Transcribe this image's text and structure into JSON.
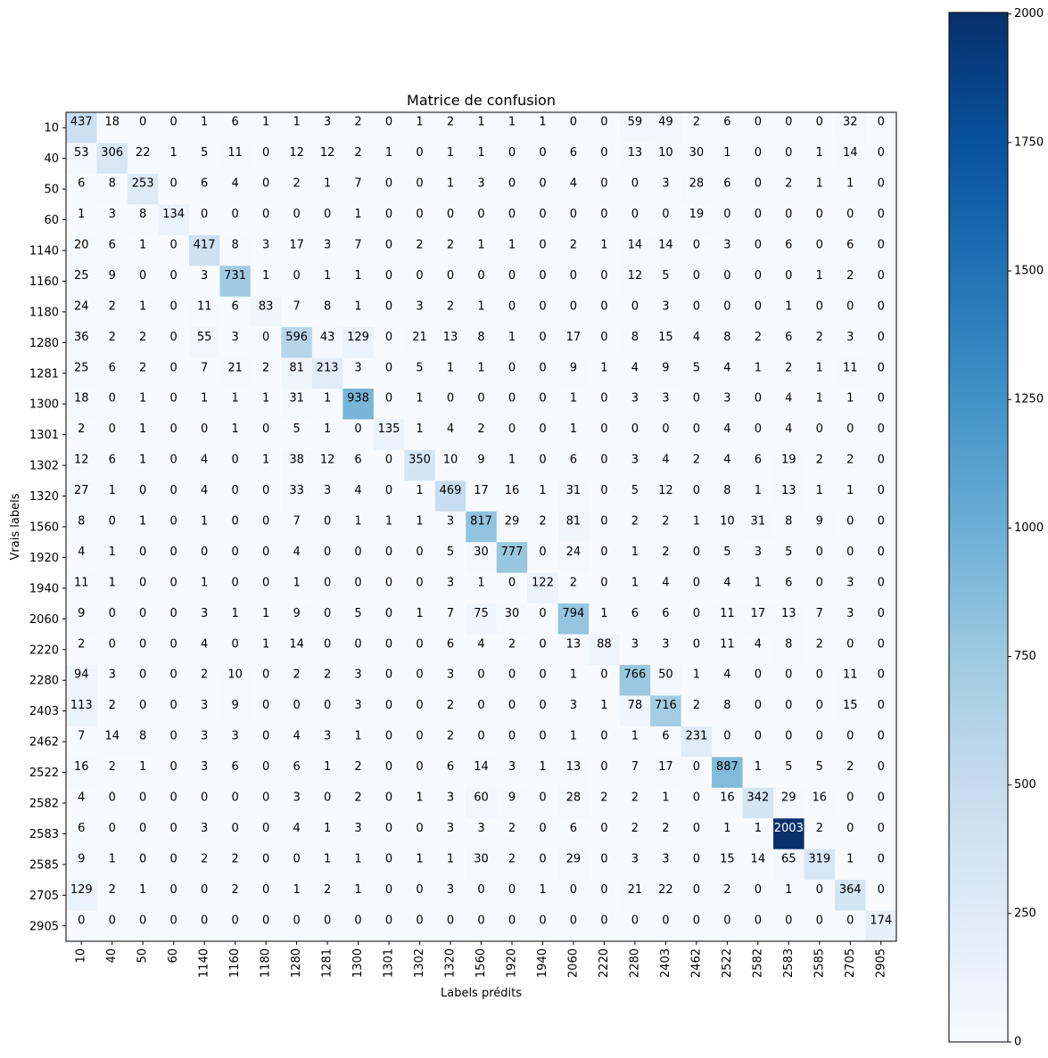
{
  "chart_data": {
    "type": "heatmap",
    "title": "Matrice de confusion",
    "xlabel": "Labels prédits",
    "ylabel": "Vrais labels",
    "categories": [
      "10",
      "40",
      "50",
      "60",
      "1140",
      "1160",
      "1180",
      "1280",
      "1281",
      "1300",
      "1301",
      "1302",
      "1320",
      "1560",
      "1920",
      "1940",
      "2060",
      "2220",
      "2280",
      "2403",
      "2462",
      "2522",
      "2582",
      "2583",
      "2585",
      "2705",
      "2905"
    ],
    "matrix": [
      [
        437,
        18,
        0,
        0,
        1,
        6,
        1,
        1,
        3,
        2,
        0,
        1,
        2,
        1,
        1,
        1,
        0,
        0,
        59,
        49,
        2,
        6,
        0,
        0,
        0,
        32,
        0
      ],
      [
        53,
        306,
        22,
        1,
        5,
        11,
        0,
        12,
        12,
        2,
        1,
        0,
        1,
        1,
        0,
        0,
        6,
        0,
        13,
        10,
        30,
        1,
        0,
        0,
        1,
        14,
        0
      ],
      [
        6,
        8,
        253,
        0,
        6,
        4,
        0,
        2,
        1,
        7,
        0,
        0,
        1,
        3,
        0,
        0,
        4,
        0,
        0,
        3,
        28,
        6,
        0,
        2,
        1,
        1,
        0
      ],
      [
        1,
        3,
        8,
        134,
        0,
        0,
        0,
        0,
        0,
        1,
        0,
        0,
        0,
        0,
        0,
        0,
        0,
        0,
        0,
        0,
        19,
        0,
        0,
        0,
        0,
        0,
        0
      ],
      [
        20,
        6,
        1,
        0,
        417,
        8,
        3,
        17,
        3,
        7,
        0,
        2,
        2,
        1,
        1,
        0,
        2,
        1,
        14,
        14,
        0,
        3,
        0,
        6,
        0,
        6,
        0
      ],
      [
        25,
        9,
        0,
        0,
        3,
        731,
        1,
        0,
        1,
        1,
        0,
        0,
        0,
        0,
        0,
        0,
        0,
        0,
        12,
        5,
        0,
        0,
        0,
        0,
        1,
        2,
        0
      ],
      [
        24,
        2,
        1,
        0,
        11,
        6,
        83,
        7,
        8,
        1,
        0,
        3,
        2,
        1,
        0,
        0,
        0,
        0,
        0,
        3,
        0,
        0,
        0,
        1,
        0,
        0,
        0
      ],
      [
        36,
        2,
        2,
        0,
        55,
        3,
        0,
        596,
        43,
        129,
        0,
        21,
        13,
        8,
        1,
        0,
        17,
        0,
        8,
        15,
        4,
        8,
        2,
        6,
        2,
        3,
        0
      ],
      [
        25,
        6,
        2,
        0,
        7,
        21,
        2,
        81,
        213,
        3,
        0,
        5,
        1,
        1,
        0,
        0,
        9,
        1,
        4,
        9,
        5,
        4,
        1,
        2,
        1,
        11,
        0
      ],
      [
        18,
        0,
        1,
        0,
        1,
        1,
        1,
        31,
        1,
        938,
        0,
        1,
        0,
        0,
        0,
        0,
        1,
        0,
        3,
        3,
        0,
        3,
        0,
        4,
        1,
        1,
        0
      ],
      [
        2,
        0,
        1,
        0,
        0,
        1,
        0,
        5,
        1,
        0,
        135,
        1,
        4,
        2,
        0,
        0,
        1,
        0,
        0,
        0,
        0,
        4,
        0,
        4,
        0,
        0,
        0
      ],
      [
        12,
        6,
        1,
        0,
        4,
        0,
        1,
        38,
        12,
        6,
        0,
        350,
        10,
        9,
        1,
        0,
        6,
        0,
        3,
        4,
        2,
        4,
        6,
        19,
        2,
        2,
        0
      ],
      [
        27,
        1,
        0,
        0,
        4,
        0,
        0,
        33,
        3,
        4,
        0,
        1,
        469,
        17,
        16,
        1,
        31,
        0,
        5,
        12,
        0,
        8,
        1,
        13,
        1,
        1,
        0
      ],
      [
        8,
        0,
        1,
        0,
        1,
        0,
        0,
        7,
        0,
        1,
        1,
        1,
        3,
        817,
        29,
        2,
        81,
        0,
        2,
        2,
        1,
        10,
        31,
        8,
        9,
        0,
        0
      ],
      [
        4,
        1,
        0,
        0,
        0,
        0,
        0,
        4,
        0,
        0,
        0,
        0,
        5,
        30,
        777,
        0,
        24,
        0,
        1,
        2,
        0,
        5,
        3,
        5,
        0,
        0,
        0
      ],
      [
        11,
        1,
        0,
        0,
        1,
        0,
        0,
        1,
        0,
        0,
        0,
        0,
        3,
        1,
        0,
        122,
        2,
        0,
        1,
        4,
        0,
        4,
        1,
        6,
        0,
        3,
        0
      ],
      [
        9,
        0,
        0,
        0,
        3,
        1,
        1,
        9,
        0,
        5,
        0,
        1,
        7,
        75,
        30,
        0,
        794,
        1,
        6,
        6,
        0,
        11,
        17,
        13,
        7,
        3,
        0
      ],
      [
        2,
        0,
        0,
        0,
        4,
        0,
        1,
        14,
        0,
        0,
        0,
        0,
        6,
        4,
        2,
        0,
        13,
        88,
        3,
        3,
        0,
        11,
        4,
        8,
        2,
        0,
        0
      ],
      [
        94,
        3,
        0,
        0,
        2,
        10,
        0,
        2,
        2,
        3,
        0,
        0,
        3,
        0,
        0,
        0,
        1,
        0,
        766,
        50,
        1,
        4,
        0,
        0,
        0,
        11,
        0
      ],
      [
        113,
        2,
        0,
        0,
        3,
        9,
        0,
        0,
        0,
        3,
        0,
        0,
        2,
        0,
        0,
        0,
        3,
        1,
        78,
        716,
        2,
        8,
        0,
        0,
        0,
        15,
        0
      ],
      [
        7,
        14,
        8,
        0,
        3,
        3,
        0,
        4,
        3,
        1,
        0,
        0,
        2,
        0,
        0,
        0,
        1,
        0,
        1,
        6,
        231,
        0,
        0,
        0,
        0,
        0,
        0
      ],
      [
        16,
        2,
        1,
        0,
        3,
        6,
        0,
        6,
        1,
        2,
        0,
        0,
        6,
        14,
        3,
        1,
        13,
        0,
        7,
        17,
        0,
        887,
        1,
        5,
        5,
        2,
        0
      ],
      [
        4,
        0,
        0,
        0,
        0,
        0,
        0,
        3,
        0,
        2,
        0,
        1,
        3,
        60,
        9,
        0,
        28,
        2,
        2,
        1,
        0,
        16,
        342,
        29,
        16,
        0,
        0
      ],
      [
        6,
        0,
        0,
        0,
        3,
        0,
        0,
        4,
        1,
        3,
        0,
        0,
        3,
        3,
        2,
        0,
        6,
        0,
        2,
        2,
        0,
        1,
        1,
        2003,
        2,
        0,
        0
      ],
      [
        9,
        1,
        0,
        0,
        2,
        2,
        0,
        0,
        1,
        1,
        0,
        1,
        1,
        30,
        2,
        0,
        29,
        0,
        3,
        3,
        0,
        15,
        14,
        65,
        319,
        1,
        0
      ],
      [
        129,
        2,
        1,
        0,
        0,
        2,
        0,
        1,
        2,
        1,
        0,
        0,
        3,
        0,
        0,
        1,
        0,
        0,
        21,
        22,
        0,
        2,
        0,
        1,
        0,
        364,
        0
      ],
      [
        0,
        0,
        0,
        0,
        0,
        0,
        0,
        0,
        0,
        0,
        0,
        0,
        0,
        0,
        0,
        0,
        0,
        0,
        0,
        0,
        0,
        0,
        0,
        0,
        0,
        0,
        174
      ]
    ],
    "color_range": [
      0,
      2003
    ],
    "colormap": "Blues",
    "colorbar_ticks": [
      0,
      250,
      500,
      750,
      1000,
      1250,
      1500,
      1750,
      2000
    ],
    "grid": false
  }
}
